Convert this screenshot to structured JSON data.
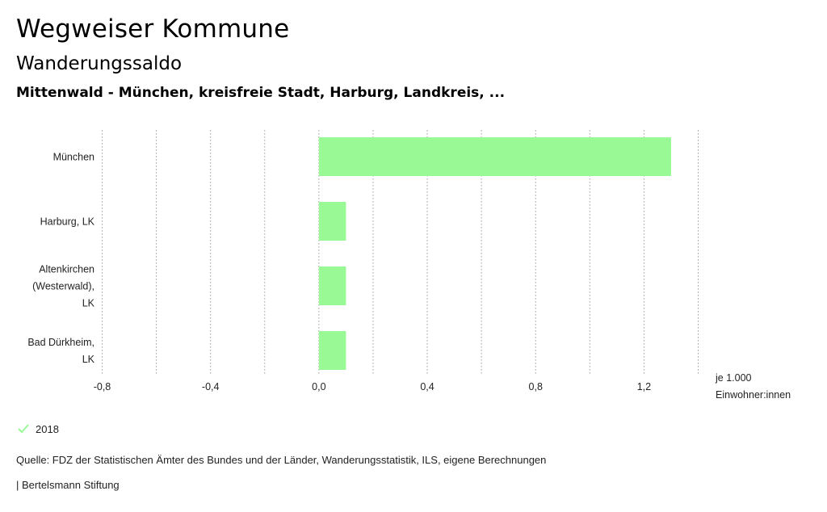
{
  "header": {
    "title": "Wegweiser Kommune",
    "subtitle": "Wanderungssaldo",
    "subtitle2": "Mittenwald - München, kreisfreie Stadt, Harburg, Landkreis, ..."
  },
  "chart_data": {
    "type": "bar",
    "orientation": "horizontal",
    "categories": [
      [
        "München"
      ],
      [
        "Harburg, LK"
      ],
      [
        "Altenkirchen",
        "(Westerwald),",
        "LK"
      ],
      [
        "Bad Dürkheim,",
        "LK"
      ]
    ],
    "series": [
      {
        "name": "2018",
        "values": [
          1.3,
          0.1,
          0.1,
          0.1
        ],
        "color": "#99f995"
      }
    ],
    "xlim": [
      -0.8,
      1.4
    ],
    "xticks": [
      -0.8,
      -0.4,
      0.0,
      0.4,
      0.8,
      1.2
    ],
    "xtick_labels": [
      "-0,8",
      "-0,4",
      "0,0",
      "0,4",
      "0,8",
      "1,2"
    ],
    "gridlines": [
      -0.8,
      -0.6,
      -0.4,
      -0.2,
      0.0,
      0.2,
      0.4,
      0.6,
      0.8,
      1.0,
      1.2,
      1.4
    ],
    "grid": true,
    "unit_label": [
      "je 1.000",
      "Einwohner:innen"
    ],
    "legend_position": "bottom-left"
  },
  "legend": {
    "label": "2018",
    "icon": "check-icon",
    "color": "#99f995"
  },
  "footer": {
    "source": "Quelle: FDZ der Statistischen Ämter des Bundes und der Länder, Wanderungsstatistik, ILS, eigene Berechnungen",
    "publisher": "| Bertelsmann Stiftung"
  }
}
